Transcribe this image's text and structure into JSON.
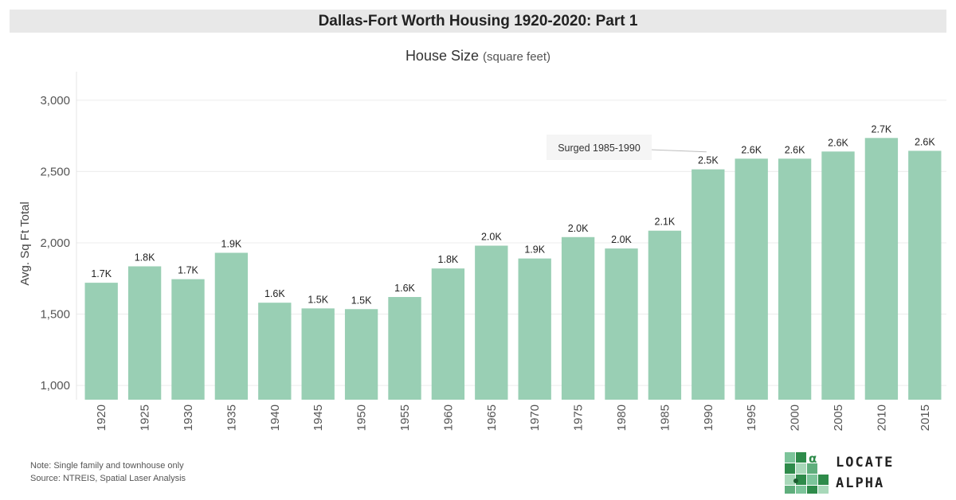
{
  "header": {
    "title": "Dallas-Fort Worth Housing 1920-2020: Part 1",
    "subtitle": "House Size",
    "subtitle_unit": "(square feet)"
  },
  "chart_data": {
    "type": "bar",
    "categories": [
      "1920",
      "1925",
      "1930",
      "1935",
      "1940",
      "1945",
      "1950",
      "1955",
      "1960",
      "1965",
      "1970",
      "1975",
      "1980",
      "1985",
      "1990",
      "1995",
      "2000",
      "2005",
      "2010",
      "2015"
    ],
    "values": [
      1720,
      1835,
      1745,
      1930,
      1580,
      1540,
      1535,
      1620,
      1820,
      1980,
      1890,
      2040,
      1960,
      2085,
      2515,
      2590,
      2590,
      2640,
      2735,
      2645
    ],
    "data_labels": [
      "1.7K",
      "1.8K",
      "1.7K",
      "1.9K",
      "1.6K",
      "1.5K",
      "1.5K",
      "1.6K",
      "1.8K",
      "2.0K",
      "1.9K",
      "2.0K",
      "2.0K",
      "2.1K",
      "2.5K",
      "2.6K",
      "2.6K",
      "2.6K",
      "2.7K",
      "2.6K"
    ],
    "title": "House Size (square feet)",
    "ylabel": "Avg. Sq Ft Total",
    "xlabel": "",
    "ylim": [
      900,
      3200
    ],
    "yticks": [
      1000,
      1500,
      2000,
      2500,
      3000
    ],
    "ytick_labels": [
      "1,000",
      "1,500",
      "2,000",
      "2,500",
      "3,000"
    ],
    "grid": true,
    "bar_color": "#99cfb4",
    "annotation": {
      "text": "Surged 1985-1990",
      "target": "1990"
    }
  },
  "footer": {
    "note": "Note: Single family and townhouse only",
    "source": "Source: NTREIS, Spatial Laser Analysis"
  },
  "logo": {
    "line1": "LOCATE",
    "line2": "ALPHA",
    "symbol": "α",
    "color": "#2e8b4a"
  }
}
